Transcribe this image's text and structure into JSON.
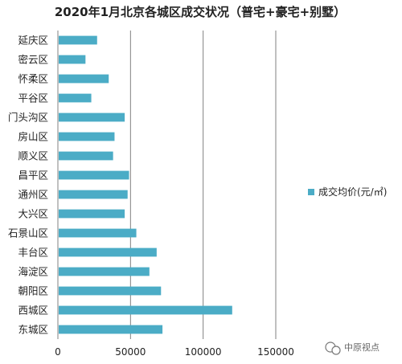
{
  "chart_data": {
    "type": "bar",
    "orientation": "horizontal",
    "title": "2020年1月北京各城区成交状况（普宅+豪宅+别墅）",
    "categories": [
      "延庆区",
      "密云区",
      "怀柔区",
      "平谷区",
      "门头沟区",
      "房山区",
      "顺义区",
      "昌平区",
      "通州区",
      "大兴区",
      "石景山区",
      "丰台区",
      "海淀区",
      "朝阳区",
      "西城区",
      "东城区"
    ],
    "series": [
      {
        "name": "成交均价(元/㎡)",
        "values": [
          27000,
          19000,
          35000,
          23000,
          46000,
          39000,
          38000,
          49000,
          48000,
          46000,
          54000,
          68000,
          63000,
          71000,
          120000,
          72000
        ]
      }
    ],
    "xlim": [
      0,
      150000
    ],
    "xticks": [
      0,
      50000,
      100000,
      150000
    ],
    "grid": "vertical",
    "legend_position": "right",
    "bar_color": "#4BACC6"
  },
  "watermark": {
    "text": "中原视点"
  }
}
